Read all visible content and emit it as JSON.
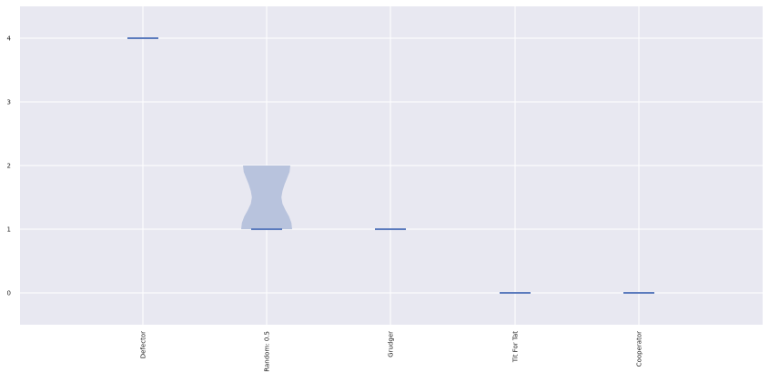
{
  "chart_data": {
    "type": "violin",
    "title": "",
    "xlabel": "",
    "ylabel": "",
    "categories": [
      "Defector",
      "Random: 0.5",
      "Grudger",
      "Tit For Tat",
      "Cooperator"
    ],
    "yticks": [
      0,
      1,
      2,
      3,
      4
    ],
    "ylim": [
      -0.5,
      4.5
    ],
    "grid": true,
    "medians": [
      4,
      1,
      1,
      0,
      0
    ],
    "violins": [
      {
        "category": "Random: 0.5",
        "y_range": [
          1,
          2
        ],
        "density_profile": [
          {
            "y": 1.0,
            "w": 1.0
          },
          {
            "y": 1.1,
            "w": 0.97
          },
          {
            "y": 1.2,
            "w": 0.88
          },
          {
            "y": 1.3,
            "w": 0.74
          },
          {
            "y": 1.4,
            "w": 0.62
          },
          {
            "y": 1.5,
            "w": 0.58
          },
          {
            "y": 1.6,
            "w": 0.62
          },
          {
            "y": 1.7,
            "w": 0.7
          },
          {
            "y": 1.8,
            "w": 0.8
          },
          {
            "y": 1.9,
            "w": 0.9
          },
          {
            "y": 2.0,
            "w": 0.93
          }
        ]
      }
    ],
    "colors": {
      "background": "#e8e8f1",
      "grid": "#ffffff",
      "violin_fill": "#b8c3dd",
      "median_line": "#5b7bbd"
    }
  }
}
